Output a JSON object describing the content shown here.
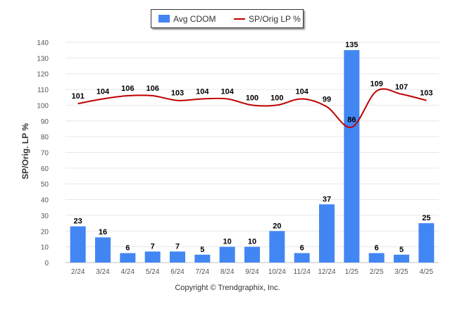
{
  "colors": {
    "bar": "#4286f4",
    "line": "#c00000",
    "grid": "#e6e6e6",
    "axis_text": "#555555",
    "label_text": "#000000"
  },
  "copyright": "Copyright © Trendgraphix, Inc.",
  "chart_data": {
    "type": "bar",
    "categories": [
      "2/24",
      "3/24",
      "4/24",
      "5/24",
      "6/24",
      "7/24",
      "8/24",
      "9/24",
      "10/24",
      "11/24",
      "12/24",
      "1/25",
      "2/25",
      "3/25",
      "4/25"
    ],
    "series": [
      {
        "name": "Avg CDOM",
        "type": "bar",
        "values": [
          23,
          16,
          6,
          7,
          7,
          5,
          10,
          10,
          20,
          6,
          37,
          135,
          6,
          5,
          25
        ]
      },
      {
        "name": "SP/Orig LP %",
        "type": "line",
        "values": [
          101,
          104,
          106,
          106,
          103,
          104,
          104,
          100,
          100,
          104,
          99,
          86,
          109,
          107,
          103
        ]
      }
    ],
    "ylabel": "SP/Orig. LP %",
    "ylim": [
      0,
      140
    ],
    "yticks": [
      0,
      10,
      20,
      30,
      40,
      50,
      60,
      70,
      80,
      90,
      100,
      110,
      120,
      130,
      140
    ],
    "grid": true,
    "legend": "top-center",
    "data_labels": true
  }
}
